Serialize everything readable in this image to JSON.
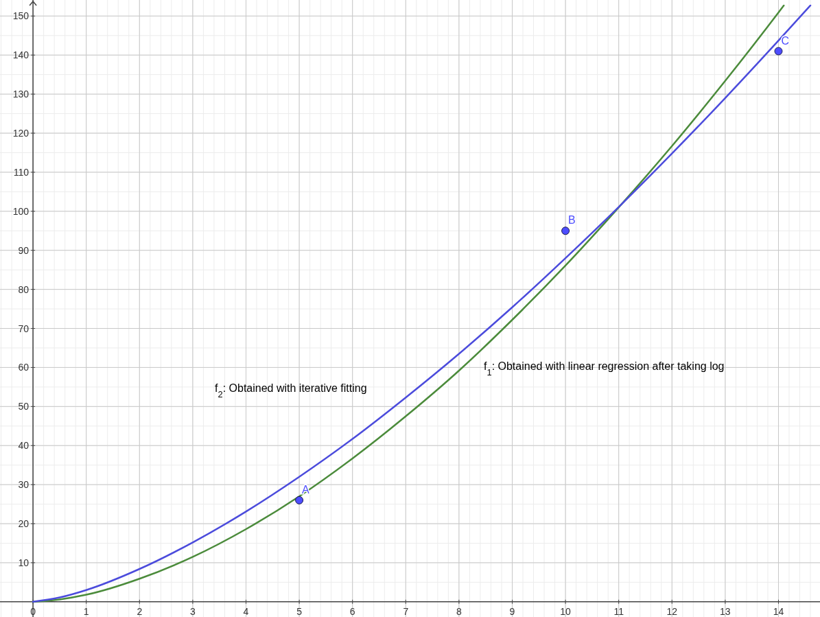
{
  "chart_data": {
    "type": "line",
    "xlim": [
      -0.62,
      14.78
    ],
    "ylim": [
      -3.9,
      154.1
    ],
    "xticks": [
      0,
      1,
      2,
      3,
      4,
      5,
      6,
      7,
      8,
      9,
      10,
      11,
      12,
      13,
      14
    ],
    "yticks": [
      10,
      20,
      30,
      40,
      50,
      60,
      70,
      80,
      90,
      100,
      110,
      120,
      130,
      140,
      150
    ],
    "grid": true,
    "annotations": [
      "f$_{2}$: Obtained with iterative fitting",
      "f$_{1}$: Obtained with linear regression after taking log"
    ],
    "series": [
      {
        "color": "#4b8b3b",
        "x": [
          0,
          0.5,
          1,
          2,
          3,
          4,
          5,
          6,
          7,
          8,
          9,
          10,
          11,
          12,
          13,
          14,
          14.1
        ],
        "values": [
          0,
          0.6,
          1.8,
          5.9,
          11.5,
          18.6,
          27,
          36.7,
          47.5,
          59.2,
          72.2,
          86.1,
          101,
          116.7,
          133.4,
          150.9,
          152.7
        ]
      },
      {
        "color": "#4b4bdc",
        "x": [
          0,
          0.5,
          1,
          2,
          3,
          4,
          5,
          6,
          7,
          8,
          9,
          10,
          11,
          12,
          13,
          14,
          14.6
        ],
        "values": [
          0,
          1.1,
          3,
          8.4,
          15.2,
          23.1,
          32,
          41.7,
          52.3,
          63.5,
          75.4,
          88,
          101.1,
          114.8,
          129,
          143.7,
          152.7
        ]
      },
      {
        "type": "scatter",
        "color": "#4d4dff",
        "x": [
          5,
          10,
          14
        ],
        "values": [
          26,
          95,
          141
        ],
        "value_labels": [
          "A",
          "B",
          "C"
        ],
        "marker": "circle"
      }
    ]
  }
}
